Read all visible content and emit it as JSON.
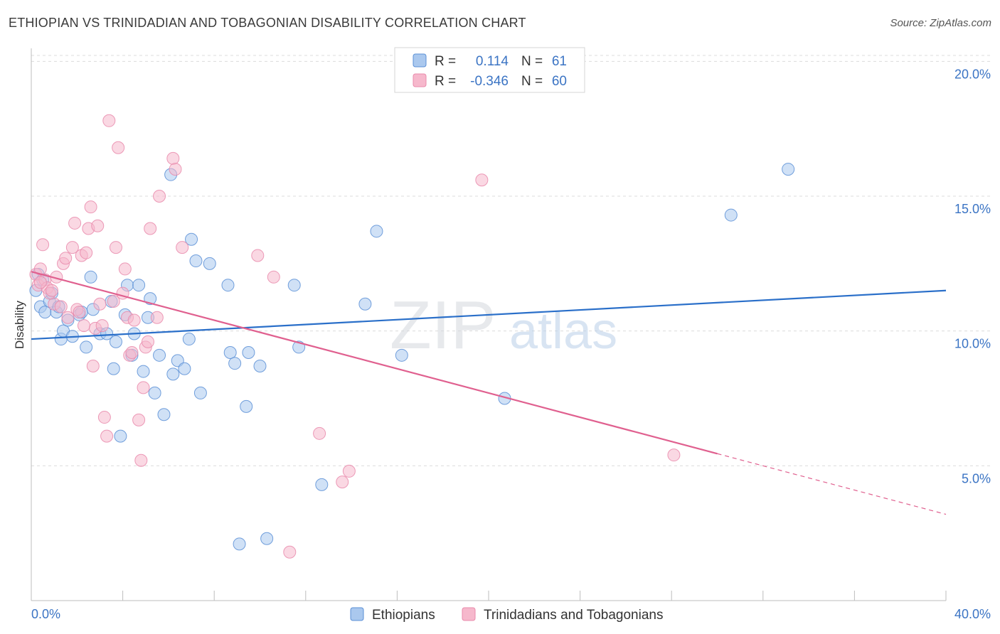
{
  "chart_data": {
    "type": "scatter",
    "title": "ETHIOPIAN VS TRINIDADIAN AND TOBAGONIAN DISABILITY CORRELATION CHART",
    "source": "Source: ZipAtlas.com",
    "ylabel": "Disability",
    "xlabel": "",
    "xlim": [
      0,
      40
    ],
    "ylim": [
      0,
      20.8
    ],
    "x_tick_labels": [
      "0.0%",
      "40.0%"
    ],
    "y_ticks": [
      5,
      10,
      15,
      20
    ],
    "y_tick_labels": [
      "5.0%",
      "10.0%",
      "15.0%",
      "20.0%"
    ],
    "watermark": {
      "zip": "ZIP",
      "atlas": "atlas"
    },
    "colors": {
      "ethiopians_fill": "#aac8ee",
      "ethiopians_stroke": "#5b8fd6",
      "ethiopians_line": "#2a6fc9",
      "trinidadians_fill": "#f6b8cc",
      "trinidadians_stroke": "#e98aab",
      "trinidadians_line": "#e0608f",
      "axis_label": "#3b74c4",
      "grid": "#dcdcdc"
    },
    "legend": {
      "rows": [
        {
          "r_label": "R = ",
          "r_value": "0.114",
          "n_label": "N = ",
          "n_value": "61"
        },
        {
          "r_label": "R = ",
          "r_value": "-0.346",
          "n_label": "N = ",
          "n_value": "60"
        }
      ]
    },
    "series": [
      {
        "name": "Ethiopians",
        "trend": {
          "x": [
            0,
            40
          ],
          "y": [
            9.7,
            11.5
          ],
          "dashed_from": null
        },
        "points": [
          [
            0.2,
            11.5
          ],
          [
            0.3,
            12.1
          ],
          [
            0.5,
            11.9
          ],
          [
            0.4,
            10.9
          ],
          [
            0.6,
            10.7
          ],
          [
            0.8,
            11.1
          ],
          [
            0.9,
            11.4
          ],
          [
            1.1,
            10.7
          ],
          [
            1.2,
            10.9
          ],
          [
            1.3,
            9.7
          ],
          [
            1.4,
            10.0
          ],
          [
            1.6,
            10.4
          ],
          [
            1.8,
            9.8
          ],
          [
            2.1,
            10.6
          ],
          [
            2.2,
            10.7
          ],
          [
            2.4,
            9.4
          ],
          [
            2.6,
            12.0
          ],
          [
            2.7,
            10.8
          ],
          [
            3.0,
            9.9
          ],
          [
            3.3,
            9.9
          ],
          [
            3.5,
            11.1
          ],
          [
            3.6,
            8.6
          ],
          [
            3.7,
            9.6
          ],
          [
            3.9,
            6.1
          ],
          [
            4.1,
            10.6
          ],
          [
            4.2,
            11.7
          ],
          [
            4.4,
            9.1
          ],
          [
            4.5,
            9.9
          ],
          [
            4.7,
            11.7
          ],
          [
            4.9,
            8.5
          ],
          [
            5.1,
            10.5
          ],
          [
            5.2,
            11.2
          ],
          [
            5.4,
            7.7
          ],
          [
            5.6,
            9.1
          ],
          [
            5.8,
            6.9
          ],
          [
            6.1,
            15.8
          ],
          [
            6.2,
            8.4
          ],
          [
            6.4,
            8.9
          ],
          [
            6.7,
            8.6
          ],
          [
            6.9,
            9.7
          ],
          [
            7.0,
            13.4
          ],
          [
            7.2,
            12.6
          ],
          [
            7.4,
            7.7
          ],
          [
            7.8,
            12.5
          ],
          [
            8.6,
            11.7
          ],
          [
            8.7,
            9.2
          ],
          [
            8.9,
            8.8
          ],
          [
            9.1,
            2.1
          ],
          [
            9.4,
            7.2
          ],
          [
            9.5,
            9.2
          ],
          [
            10.0,
            8.7
          ],
          [
            10.3,
            2.3
          ],
          [
            11.5,
            11.7
          ],
          [
            11.7,
            9.4
          ],
          [
            12.7,
            4.3
          ],
          [
            14.6,
            11.0
          ],
          [
            15.1,
            13.7
          ],
          [
            16.2,
            9.1
          ],
          [
            20.7,
            7.5
          ],
          [
            30.6,
            14.3
          ],
          [
            33.1,
            16.0
          ]
        ]
      },
      {
        "name": "Trinidadians and Tobagonians",
        "trend": {
          "x": [
            0,
            40
          ],
          "y": [
            12.2,
            3.2
          ],
          "dashed_from": 30.0
        },
        "points": [
          [
            0.2,
            12.1
          ],
          [
            0.3,
            11.7
          ],
          [
            0.4,
            12.3
          ],
          [
            0.5,
            13.2
          ],
          [
            0.6,
            11.9
          ],
          [
            0.7,
            11.6
          ],
          [
            0.8,
            11.4
          ],
          [
            0.9,
            11.5
          ],
          [
            1.0,
            11.0
          ],
          [
            1.1,
            12.0
          ],
          [
            1.3,
            10.9
          ],
          [
            1.4,
            12.5
          ],
          [
            1.5,
            12.7
          ],
          [
            1.6,
            10.5
          ],
          [
            1.8,
            13.1
          ],
          [
            1.9,
            14.0
          ],
          [
            2.0,
            10.8
          ],
          [
            2.1,
            10.7
          ],
          [
            2.2,
            12.8
          ],
          [
            2.3,
            10.2
          ],
          [
            2.4,
            12.9
          ],
          [
            2.5,
            13.8
          ],
          [
            2.6,
            14.6
          ],
          [
            2.7,
            8.7
          ],
          [
            2.8,
            10.1
          ],
          [
            2.9,
            13.9
          ],
          [
            3.0,
            11.0
          ],
          [
            3.1,
            10.2
          ],
          [
            3.2,
            6.8
          ],
          [
            3.3,
            6.1
          ],
          [
            3.4,
            17.8
          ],
          [
            3.6,
            11.1
          ],
          [
            3.7,
            13.1
          ],
          [
            3.8,
            16.8
          ],
          [
            4.0,
            11.4
          ],
          [
            4.1,
            12.3
          ],
          [
            4.2,
            10.5
          ],
          [
            4.3,
            9.1
          ],
          [
            4.4,
            9.2
          ],
          [
            4.5,
            10.4
          ],
          [
            4.7,
            6.7
          ],
          [
            4.8,
            5.2
          ],
          [
            4.9,
            7.9
          ],
          [
            5.0,
            9.4
          ],
          [
            5.1,
            9.6
          ],
          [
            5.2,
            13.8
          ],
          [
            5.5,
            10.5
          ],
          [
            5.6,
            15.0
          ],
          [
            6.2,
            16.4
          ],
          [
            6.3,
            16.0
          ],
          [
            6.6,
            13.1
          ],
          [
            9.9,
            12.8
          ],
          [
            10.6,
            12.0
          ],
          [
            11.3,
            1.8
          ],
          [
            12.6,
            6.2
          ],
          [
            13.6,
            4.4
          ],
          [
            13.9,
            4.8
          ],
          [
            19.7,
            15.6
          ],
          [
            28.1,
            5.4
          ],
          [
            0.4,
            11.8
          ]
        ]
      }
    ]
  }
}
